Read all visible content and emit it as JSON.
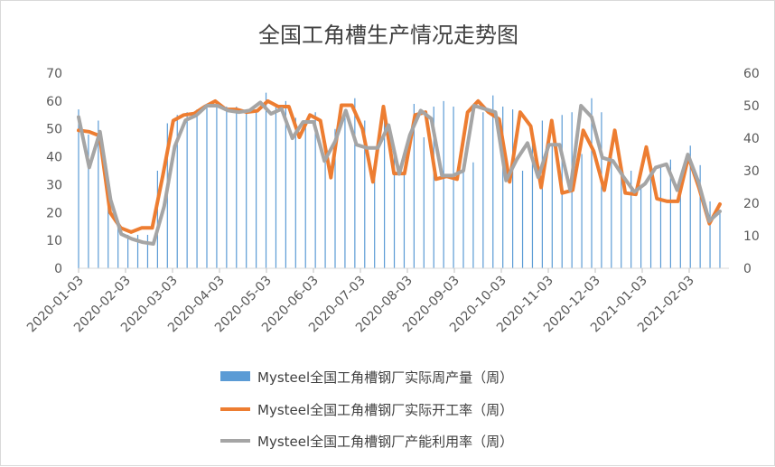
{
  "chart_data": {
    "type": "bar+line",
    "title": "全国工角槽生产情况走势图",
    "x_tick_labels": [
      "2020-01-03",
      "2020-02-03",
      "2020-03-03",
      "2020-04-03",
      "2020-05-03",
      "2020-06-03",
      "2020-07-03",
      "2020-08-03",
      "2020-09-03",
      "2020-10-03",
      "2020-11-03",
      "2020-12-03",
      "2021-01-03",
      "2021-02-03"
    ],
    "y_left": {
      "min": 0,
      "max": 70,
      "ticks": [
        0,
        10,
        20,
        30,
        40,
        50,
        60,
        70
      ]
    },
    "y_right": {
      "min": 0,
      "max": 60,
      "ticks": [
        0,
        10,
        20,
        30,
        40,
        50,
        60
      ]
    },
    "legend_position": "bottom",
    "grid": false,
    "series": [
      {
        "name": "Mysteel全国工角槽钢厂实际周产量（周）",
        "type": "bar",
        "axis": "left",
        "color": "#5B9BD5",
        "values": [
          57,
          48,
          53,
          22,
          15,
          12,
          12,
          12,
          35,
          52,
          55,
          56,
          57,
          59,
          60,
          58,
          58,
          57,
          57,
          63,
          59,
          60,
          54,
          53,
          56,
          38,
          50,
          56,
          61,
          53,
          37,
          56,
          40,
          35,
          59,
          47,
          58,
          60,
          58,
          37,
          38,
          56,
          62,
          58,
          57,
          35,
          50,
          53,
          44,
          55,
          56,
          41,
          61,
          56,
          40,
          38,
          35,
          30,
          32,
          37,
          39,
          28,
          44,
          37,
          24,
          20
        ]
      },
      {
        "name": "Mysteel全国工角槽钢厂实际开工率（周）",
        "type": "line",
        "axis": "left",
        "color": "#ED7D31",
        "values": [
          49.5,
          49,
          47.5,
          20,
          14.5,
          13,
          14.5,
          14.5,
          33,
          53,
          55,
          55.5,
          58,
          60,
          57,
          57,
          56,
          56.5,
          60,
          58,
          58,
          47,
          55,
          53,
          32.5,
          58.5,
          58.5,
          50,
          31,
          58,
          34,
          34,
          55,
          56,
          32,
          33,
          32,
          56,
          60,
          56,
          53.5,
          31,
          56,
          51,
          29,
          53,
          27,
          28,
          49.5,
          42,
          28,
          49.5,
          27,
          26.5,
          43.5,
          25,
          24,
          24,
          40,
          29,
          16,
          23
        ]
      },
      {
        "name": "Mysteel全国工角槽钢厂产能利用率（周）",
        "type": "line",
        "axis": "right",
        "color": "#A5A5A5",
        "values": [
          46.5,
          31,
          42,
          21,
          10.5,
          9,
          8,
          7.5,
          19,
          37.5,
          45.5,
          47,
          50,
          50,
          48.5,
          48,
          48.5,
          51,
          47.5,
          49,
          40,
          45,
          45,
          33,
          39,
          48.5,
          38,
          37,
          37,
          44,
          29,
          41,
          48.5,
          46,
          28.5,
          28.5,
          30,
          50,
          49,
          48,
          27,
          33.5,
          38.5,
          28,
          38,
          38,
          24,
          50,
          46.5,
          34,
          33,
          28,
          23.5,
          26,
          31,
          32,
          24,
          35,
          26.5,
          14.5,
          17.5
        ]
      }
    ]
  }
}
